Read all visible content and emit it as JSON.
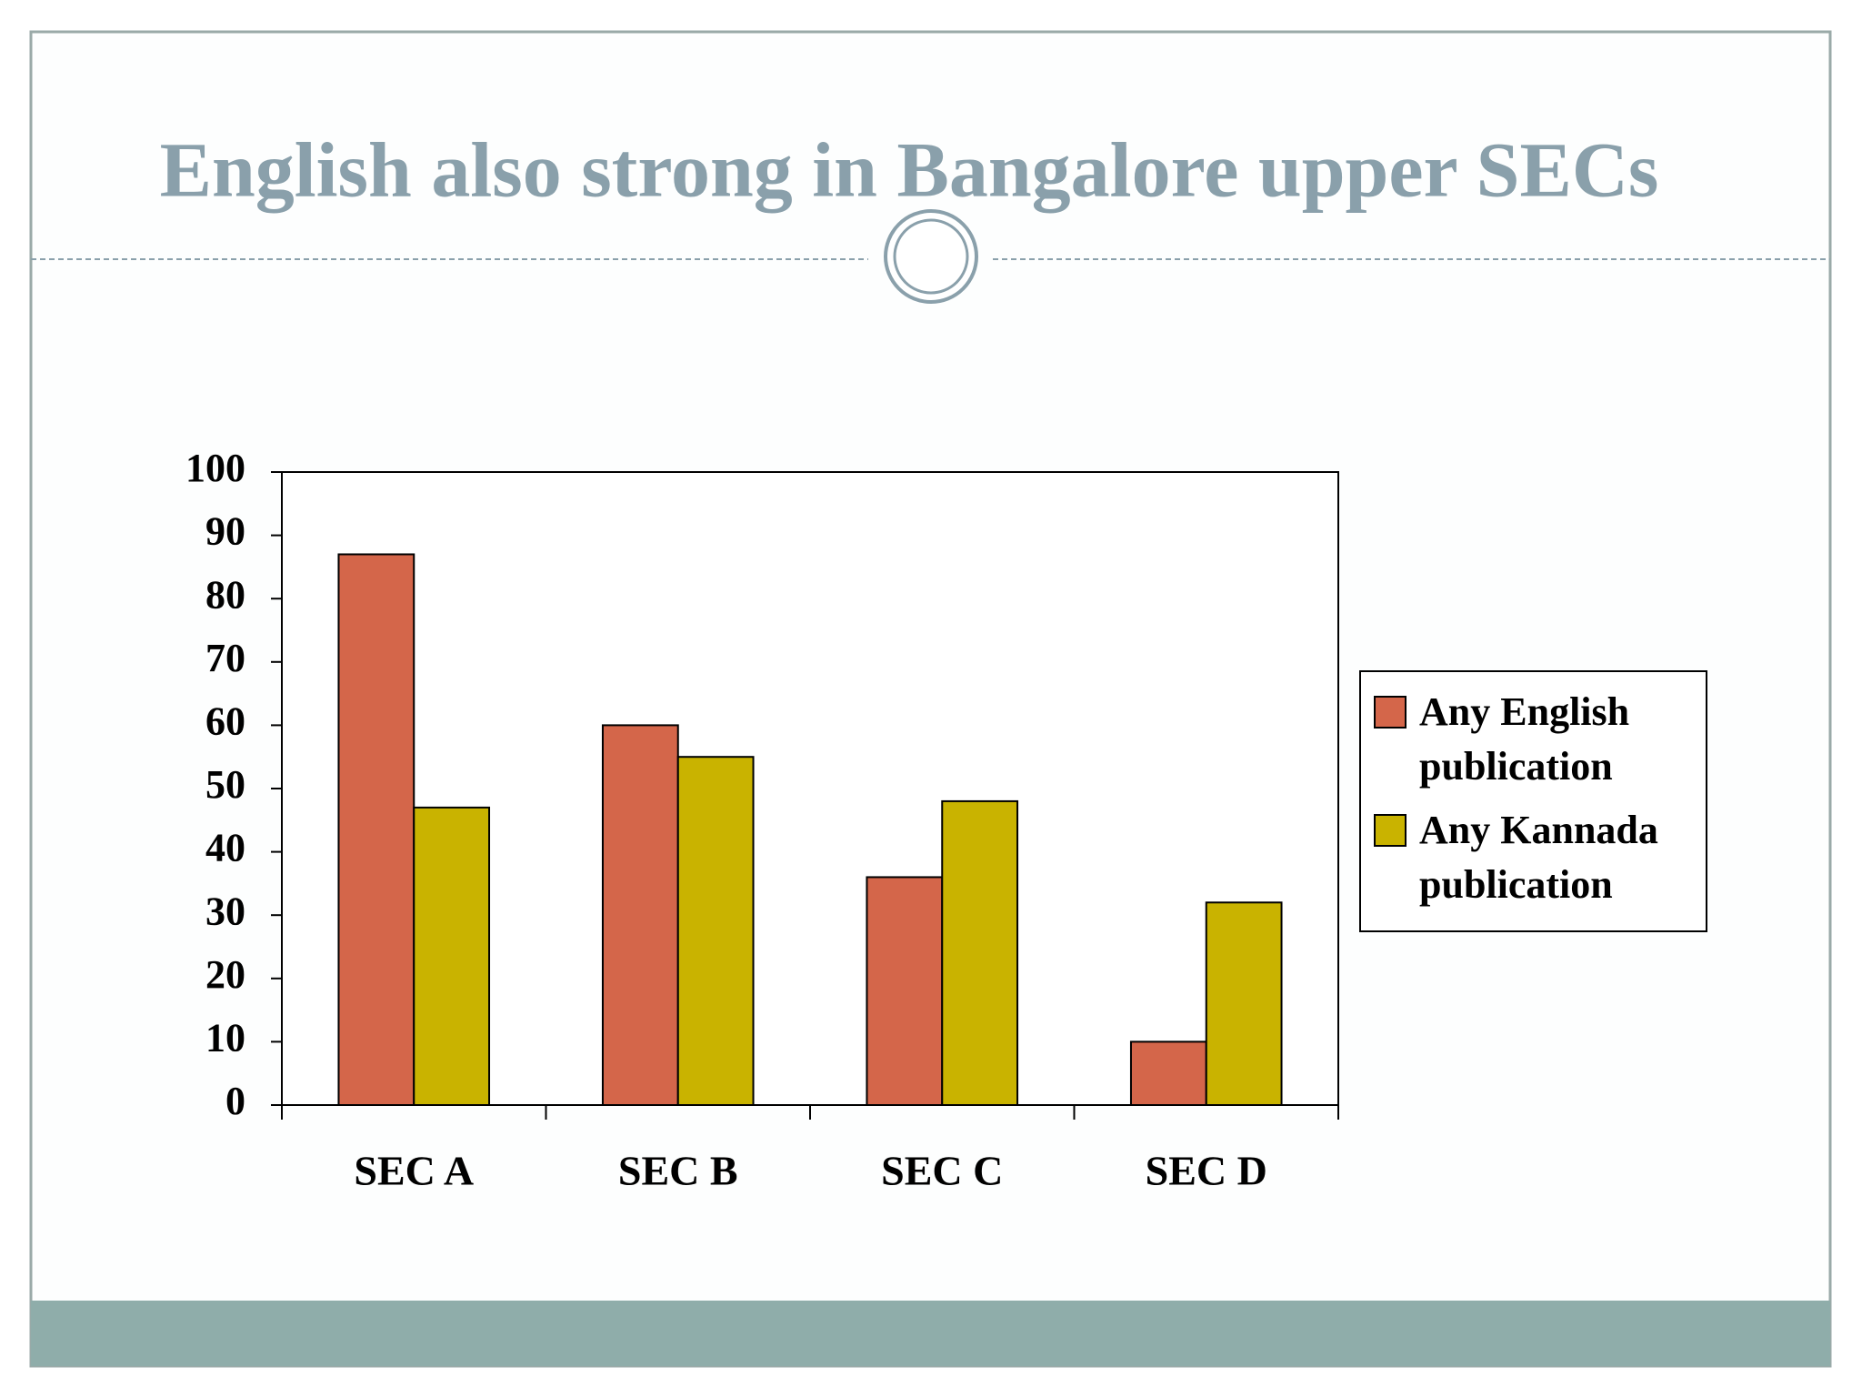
{
  "chart_data": {
    "type": "bar",
    "title": "English also strong in Bangalore upper SECs",
    "categories": [
      "SEC A",
      "SEC B",
      "SEC C",
      "SEC D"
    ],
    "series": [
      {
        "name": "Any English publication",
        "color": "#d4664a",
        "values": [
          87,
          60,
          36,
          10
        ]
      },
      {
        "name": "Any Kannada publication",
        "color": "#c9b300",
        "values": [
          47,
          55,
          48,
          32
        ]
      }
    ],
    "ylim": [
      0,
      100
    ],
    "yticks": [
      0,
      10,
      20,
      30,
      40,
      50,
      60,
      70,
      80,
      90,
      100
    ],
    "legend": "right"
  }
}
